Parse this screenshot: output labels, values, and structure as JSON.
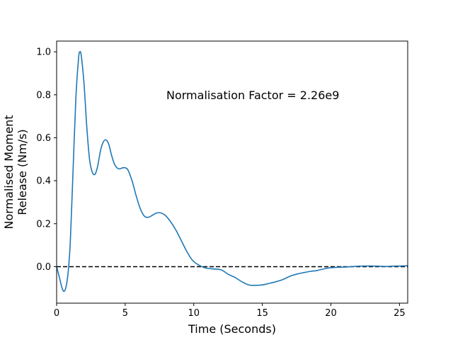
{
  "chart_data": {
    "type": "line",
    "title": "",
    "xlabel": "Time (Seconds)",
    "ylabel_lines": [
      "Normalised Moment",
      "Release (Nm/s)"
    ],
    "xlim": [
      0,
      25.6
    ],
    "ylim": [
      -0.17,
      1.05
    ],
    "x_ticks": [
      0,
      5,
      10,
      15,
      20,
      25
    ],
    "y_ticks": [
      0.0,
      0.2,
      0.4,
      0.6,
      0.8,
      1.0
    ],
    "x_tick_labels": [
      "0",
      "5",
      "10",
      "15",
      "20",
      "25"
    ],
    "y_tick_labels": [
      "0.0",
      "0.2",
      "0.4",
      "0.6",
      "0.8",
      "1.0"
    ],
    "annotation": {
      "text": "Normalisation Factor = 2.26e9",
      "x": 8.0,
      "y": 0.8
    },
    "reference_line": {
      "y": 0.0,
      "style": "dashed",
      "color": "#000000"
    },
    "grid": false,
    "series": [
      {
        "color": "#1f77b4",
        "points": [
          [
            0.0,
            0.0
          ],
          [
            0.2,
            -0.05
          ],
          [
            0.4,
            -0.1
          ],
          [
            0.55,
            -0.115
          ],
          [
            0.7,
            -0.09
          ],
          [
            0.85,
            -0.02
          ],
          [
            1.0,
            0.12
          ],
          [
            1.2,
            0.45
          ],
          [
            1.4,
            0.78
          ],
          [
            1.6,
            0.97
          ],
          [
            1.7,
            1.0
          ],
          [
            1.8,
            0.98
          ],
          [
            2.0,
            0.85
          ],
          [
            2.2,
            0.65
          ],
          [
            2.4,
            0.5
          ],
          [
            2.6,
            0.44
          ],
          [
            2.8,
            0.43
          ],
          [
            3.0,
            0.47
          ],
          [
            3.2,
            0.54
          ],
          [
            3.4,
            0.58
          ],
          [
            3.6,
            0.59
          ],
          [
            3.8,
            0.57
          ],
          [
            4.0,
            0.52
          ],
          [
            4.2,
            0.48
          ],
          [
            4.4,
            0.46
          ],
          [
            4.6,
            0.455
          ],
          [
            4.8,
            0.46
          ],
          [
            5.0,
            0.46
          ],
          [
            5.2,
            0.45
          ],
          [
            5.5,
            0.4
          ],
          [
            5.8,
            0.33
          ],
          [
            6.1,
            0.27
          ],
          [
            6.4,
            0.235
          ],
          [
            6.7,
            0.23
          ],
          [
            7.0,
            0.24
          ],
          [
            7.3,
            0.25
          ],
          [
            7.6,
            0.25
          ],
          [
            7.9,
            0.24
          ],
          [
            8.3,
            0.21
          ],
          [
            8.7,
            0.17
          ],
          [
            9.1,
            0.12
          ],
          [
            9.5,
            0.07
          ],
          [
            9.9,
            0.03
          ],
          [
            10.3,
            0.01
          ],
          [
            10.8,
            -0.005
          ],
          [
            11.3,
            -0.01
          ],
          [
            12.0,
            -0.015
          ],
          [
            12.5,
            -0.035
          ],
          [
            13.0,
            -0.05
          ],
          [
            13.5,
            -0.07
          ],
          [
            14.0,
            -0.085
          ],
          [
            14.5,
            -0.087
          ],
          [
            15.0,
            -0.085
          ],
          [
            15.5,
            -0.078
          ],
          [
            16.0,
            -0.07
          ],
          [
            16.5,
            -0.06
          ],
          [
            17.0,
            -0.045
          ],
          [
            17.5,
            -0.035
          ],
          [
            18.0,
            -0.028
          ],
          [
            18.5,
            -0.022
          ],
          [
            19.0,
            -0.018
          ],
          [
            19.5,
            -0.01
          ],
          [
            20.0,
            -0.005
          ],
          [
            20.5,
            -0.003
          ],
          [
            21.0,
            -0.002
          ],
          [
            21.5,
            0.0
          ],
          [
            22.0,
            0.002
          ],
          [
            22.5,
            0.003
          ],
          [
            23.0,
            0.003
          ],
          [
            23.5,
            0.002
          ],
          [
            24.0,
            0.001
          ],
          [
            24.5,
            0.002
          ],
          [
            25.0,
            0.003
          ],
          [
            25.6,
            0.004
          ]
        ]
      }
    ]
  }
}
